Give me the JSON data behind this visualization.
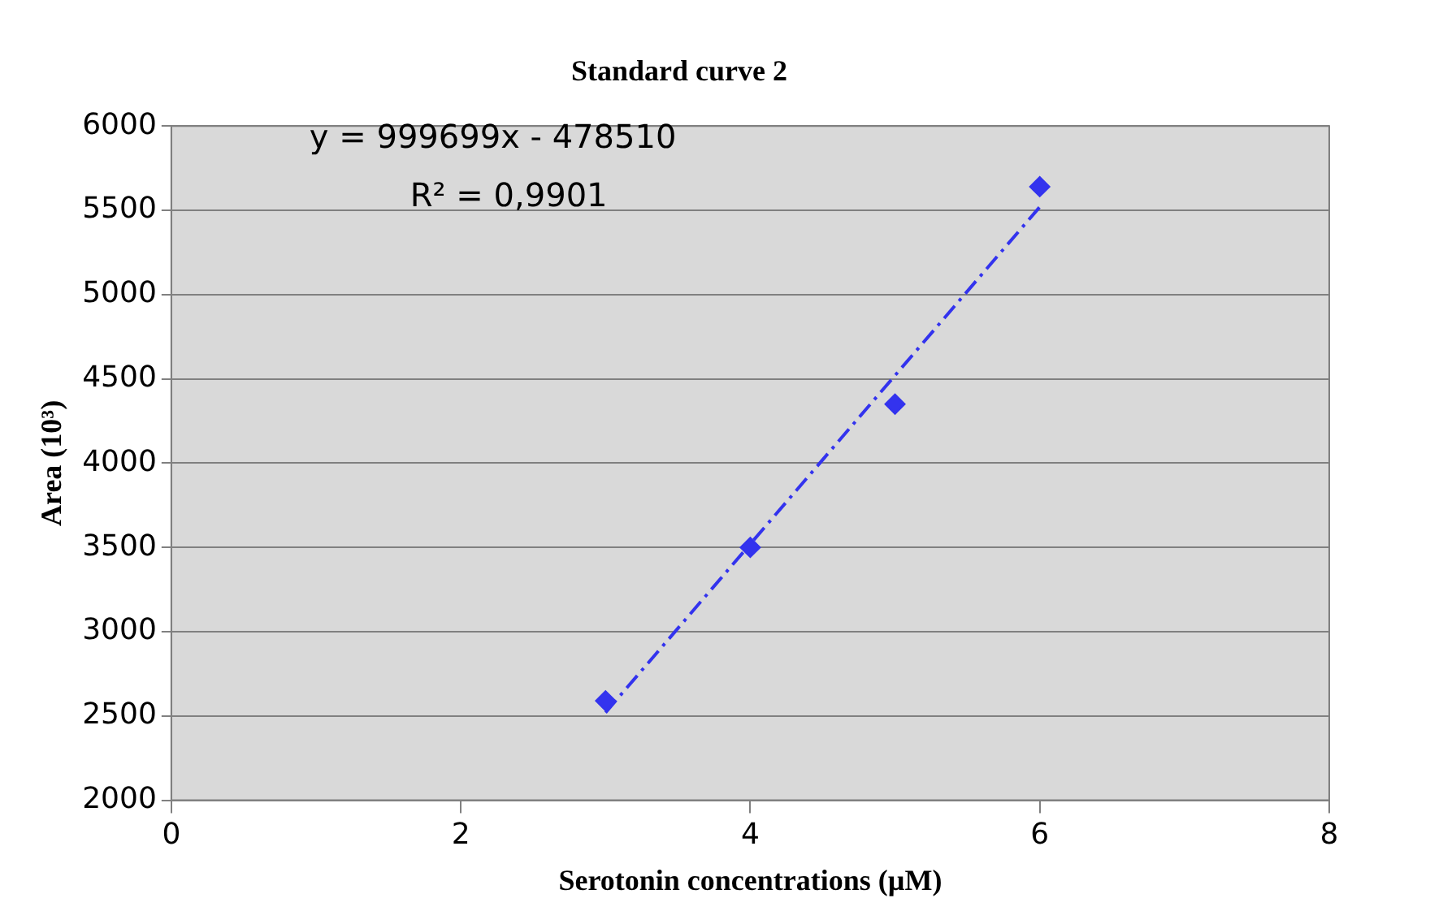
{
  "chart_data": {
    "type": "scatter",
    "title": "Standard curve 2",
    "xlabel": "Serotonin concentrations (µM)",
    "ylabel": "Area (10³)",
    "series": [
      {
        "type": "scatter",
        "color": "#3333ee",
        "x": [
          3,
          4,
          5,
          6
        ],
        "values": [
          2590,
          3500,
          4350,
          5640
        ],
        "marker": "diamond"
      },
      {
        "type": "line",
        "color": "#3333ee",
        "x": [
          3,
          6
        ],
        "values": [
          2520,
          5520
        ],
        "marker": "none",
        "line_style": "dashed"
      }
    ],
    "annotations": [
      "y = 999699x - 478510",
      "R² = 0,9901"
    ],
    "xlim": [
      0,
      8
    ],
    "xticks": [
      0,
      2,
      4,
      6,
      8
    ],
    "ylim": [
      2000,
      6000
    ],
    "yticks": [
      2000,
      2500,
      3000,
      3500,
      4000,
      4500,
      5000,
      5500,
      6000
    ],
    "grid": "y",
    "legend": false
  }
}
